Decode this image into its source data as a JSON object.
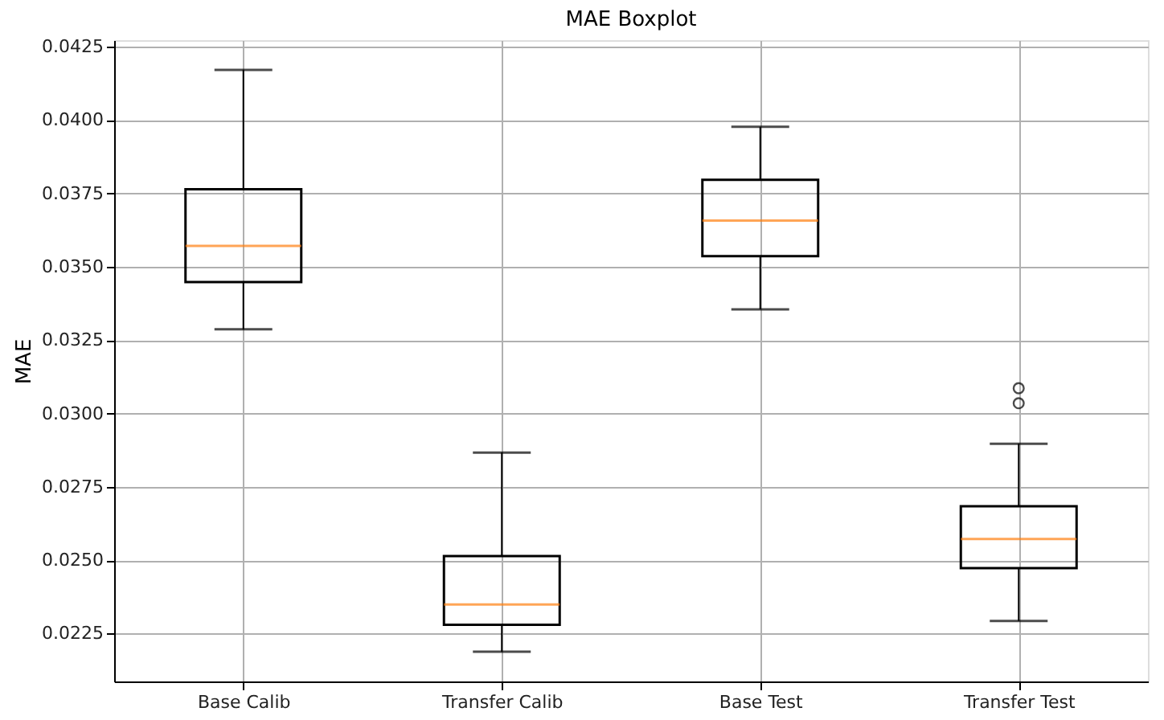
{
  "chart_data": {
    "type": "box",
    "title": "MAE Boxplot",
    "ylabel": "MAE",
    "categories": [
      "Base Calib",
      "Transfer Calib",
      "Base Test",
      "Transfer Test"
    ],
    "boxes": [
      {
        "low": 0.03287,
        "q1": 0.03448,
        "median": 0.03571,
        "q3": 0.03764,
        "high": 0.04171
      },
      {
        "low": 0.02188,
        "q1": 0.0228,
        "median": 0.02349,
        "q3": 0.02514,
        "high": 0.02867
      },
      {
        "low": 0.03355,
        "q1": 0.03536,
        "median": 0.03657,
        "q3": 0.03796,
        "high": 0.03977
      },
      {
        "low": 0.02293,
        "q1": 0.02473,
        "median": 0.02572,
        "q3": 0.02684,
        "high": 0.02897,
        "outliers": [
          0.03086,
          0.03035
        ]
      }
    ],
    "ylim": [
      0.02087,
      0.04272
    ],
    "yticks": [
      {
        "value": 0.0225,
        "label": "0.0225"
      },
      {
        "value": 0.025,
        "label": "0.0250"
      },
      {
        "value": 0.0275,
        "label": "0.0275"
      },
      {
        "value": 0.03,
        "label": "0.0300"
      },
      {
        "value": 0.0325,
        "label": "0.0325"
      },
      {
        "value": 0.035,
        "label": "0.0350"
      },
      {
        "value": 0.0375,
        "label": "0.0375"
      },
      {
        "value": 0.04,
        "label": "0.0400"
      },
      {
        "value": 0.0425,
        "label": "0.0425"
      }
    ],
    "grid": true
  }
}
